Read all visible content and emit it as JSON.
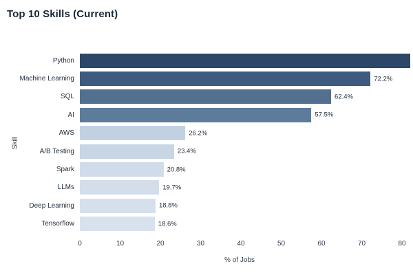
{
  "title": "Top 10 Skills (Current)",
  "chart_data": {
    "type": "bar",
    "orientation": "horizontal",
    "title": "Top 10 Skills (Current)",
    "xlabel": "% of Jobs",
    "ylabel": "Skill",
    "xlim": [
      0,
      80
    ],
    "xticks": [
      0,
      10,
      20,
      30,
      40,
      50,
      60,
      70,
      80
    ],
    "grid": false,
    "legend": false,
    "categories": [
      "Python",
      "Machine Learning",
      "SQL",
      "AI",
      "AWS",
      "A/B Testing",
      "Spark",
      "LLMs",
      "Deep Learning",
      "Tensorflow"
    ],
    "values": [
      82,
      72.2,
      62.4,
      57.5,
      26.2,
      23.4,
      20.8,
      19.7,
      18.8,
      18.6
    ],
    "bar_labels": [
      "",
      "72.2%",
      "62.4%",
      "57.5%",
      "26.2%",
      "23.4%",
      "20.8%",
      "19.7%",
      "18.8%",
      "18.6%"
    ],
    "bar_colors": [
      "#2d4768",
      "#3e5a7e",
      "#53708f",
      "#5d7b9b",
      "#c2d1e2",
      "#c7d5e5",
      "#d0dce9",
      "#d3deea",
      "#d6e0ec",
      "#d8e2ed"
    ]
  },
  "colors": {
    "background": "#ffffff",
    "title_text": "#1b2634",
    "axis_text": "#2f3b49",
    "category_text": "#222e3d",
    "value_text": "#1f2b39"
  }
}
